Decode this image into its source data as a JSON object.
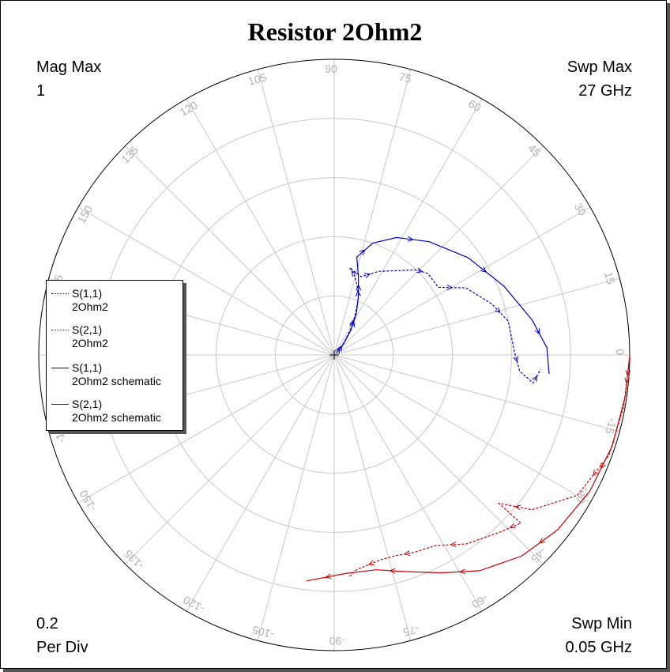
{
  "chart_data": {
    "type": "polar",
    "title": "Resistor 2Ohm2",
    "mag_max_label": "Mag Max",
    "mag_max_value": "1",
    "swp_max_label": "Swp Max",
    "swp_max_value": "27  GHz",
    "swp_min_label": "Swp Min",
    "swp_min_value": "0.05  GHz",
    "per_div_value": "0.2",
    "per_div_label": "Per Div",
    "magnitude_range": [
      0,
      1
    ],
    "ring_step": 0.2,
    "angle_labels": [
      "0",
      "15",
      "30",
      "45",
      "60",
      "75",
      "90",
      "105",
      "120",
      "135",
      "150",
      "165",
      "-165",
      "-150",
      "-135",
      "-120",
      "-105",
      "-90",
      "-75",
      "-60",
      "-45",
      "-30",
      "-15"
    ],
    "legend": [
      {
        "name": "S(1,1)",
        "sub": "2Ohm2",
        "color": "#0000cc",
        "style": "dotted"
      },
      {
        "name": "S(2,1)",
        "sub": "2Ohm2",
        "color": "#cc0000",
        "style": "dotted"
      },
      {
        "name": "S(1,1)",
        "sub": "2Ohm2 schematic",
        "color": "#0000cc",
        "style": "solid"
      },
      {
        "name": "S(2,1)",
        "sub": "2Ohm2 schematic",
        "color": "#cc0000",
        "style": "solid"
      }
    ],
    "series": [
      {
        "name": "S(1,1) 2Ohm2",
        "color": "#0000cc",
        "dash": true,
        "points": [
          [
            0.02,
            40
          ],
          [
            0.06,
            53
          ],
          [
            0.11,
            58
          ],
          [
            0.16,
            63
          ],
          [
            0.21,
            67
          ],
          [
            0.25,
            72
          ],
          [
            0.28,
            76
          ],
          [
            0.3,
            80
          ],
          [
            0.28,
            71
          ],
          [
            0.32,
            62
          ],
          [
            0.4,
            46
          ],
          [
            0.42,
            41
          ],
          [
            0.42,
            33
          ],
          [
            0.5,
            27
          ],
          [
            0.56,
            18
          ],
          [
            0.6,
            11
          ],
          [
            0.61,
            1
          ],
          [
            0.63,
            -5
          ],
          [
            0.68,
            -8
          ],
          [
            0.7,
            -4
          ]
        ]
      },
      {
        "name": "S(2,1) 2Ohm2",
        "color": "#cc0000",
        "dash": true,
        "points": [
          [
            0.999,
            -1
          ],
          [
            0.995,
            -10
          ],
          [
            0.99,
            -20
          ],
          [
            0.95,
            -30
          ],
          [
            0.85,
            -38
          ],
          [
            0.75,
            -42
          ],
          [
            0.85,
            -42
          ],
          [
            0.82,
            -47
          ],
          [
            0.78,
            -55
          ],
          [
            0.73,
            -62
          ],
          [
            0.72,
            -68
          ],
          [
            0.71,
            -73
          ],
          [
            0.71,
            -77
          ],
          [
            0.73,
            -84
          ],
          [
            0.75,
            -86
          ]
        ]
      },
      {
        "name": "S(1,1) 2Ohm2 schematic",
        "color": "#0000cc",
        "dash": false,
        "points": [
          [
            0.01,
            40
          ],
          [
            0.05,
            50
          ],
          [
            0.1,
            56
          ],
          [
            0.16,
            62
          ],
          [
            0.22,
            68
          ],
          [
            0.28,
            73
          ],
          [
            0.34,
            77
          ],
          [
            0.4,
            71
          ],
          [
            0.45,
            62
          ],
          [
            0.5,
            50
          ],
          [
            0.56,
            36
          ],
          [
            0.62,
            22
          ],
          [
            0.68,
            10
          ],
          [
            0.72,
            2
          ],
          [
            0.73,
            -5
          ]
        ]
      },
      {
        "name": "S(2,1) 2Ohm2 schematic",
        "color": "#cc0000",
        "dash": false,
        "points": [
          [
            1.0,
            0
          ],
          [
            0.995,
            -8
          ],
          [
            0.99,
            -18
          ],
          [
            0.98,
            -28
          ],
          [
            0.96,
            -38
          ],
          [
            0.93,
            -47
          ],
          [
            0.88,
            -56
          ],
          [
            0.82,
            -64
          ],
          [
            0.77,
            -72
          ],
          [
            0.74,
            -79
          ],
          [
            0.74,
            -87
          ],
          [
            0.77,
            -97
          ]
        ]
      }
    ]
  }
}
